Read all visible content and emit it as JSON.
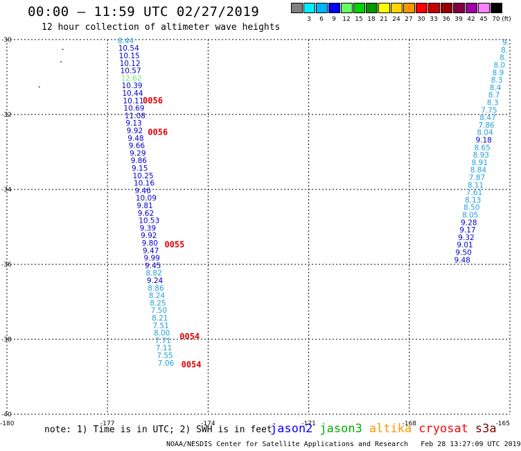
{
  "header": {
    "title": "00:00 – 11:59 UTC 02/27/2019",
    "subtitle": "12 hour collection of altimeter wave heights"
  },
  "legend": {
    "unit_label": "(ft)",
    "bins": [
      {
        "label": "",
        "color": "#808080"
      },
      {
        "label": "3",
        "color": "#00eeff"
      },
      {
        "label": "6",
        "color": "#00b4ff"
      },
      {
        "label": "9",
        "color": "#0000ff"
      },
      {
        "label": "12",
        "color": "#66ff66"
      },
      {
        "label": "15",
        "color": "#00d200"
      },
      {
        "label": "18",
        "color": "#009600"
      },
      {
        "label": "21",
        "color": "#ffff00"
      },
      {
        "label": "24",
        "color": "#ffd200"
      },
      {
        "label": "27",
        "color": "#ff9600"
      },
      {
        "label": "30",
        "color": "#ff0000"
      },
      {
        "label": "33",
        "color": "#c80000"
      },
      {
        "label": "36",
        "color": "#960000"
      },
      {
        "label": "39",
        "color": "#800040"
      },
      {
        "label": "42",
        "color": "#a000a0"
      },
      {
        "label": "45",
        "color": "#ff80ff"
      },
      {
        "label": "70",
        "color": "#000000"
      }
    ]
  },
  "axes": {
    "lat_ticks": [
      "-30",
      "-32",
      "-34",
      "-36",
      "-38",
      "-40"
    ],
    "lon_ticks": [
      "-180",
      "-177",
      "-174",
      "-171",
      "-168",
      "-165"
    ],
    "lat_range": [
      -40,
      -30
    ],
    "lon_range": [
      -180,
      -165
    ]
  },
  "track_west": [
    {
      "lat": -30.1,
      "lon": -176.7,
      "v": "8.44",
      "c": "#1fa0e0"
    },
    {
      "lat": -30.3,
      "lon": -176.68,
      "v": "10.54",
      "c": "#0000cc"
    },
    {
      "lat": -30.5,
      "lon": -176.66,
      "v": "10.15",
      "c": "#0000cc"
    },
    {
      "lat": -30.7,
      "lon": -176.64,
      "v": "10.12",
      "c": "#0000cc"
    },
    {
      "lat": -30.9,
      "lon": -176.62,
      "v": "10.57",
      "c": "#0000cc"
    },
    {
      "lat": -31.1,
      "lon": -176.6,
      "v": "12.62",
      "c": "#66ee66"
    },
    {
      "lat": -31.3,
      "lon": -176.58,
      "v": "10.39",
      "c": "#0000cc"
    },
    {
      "lat": -31.5,
      "lon": -176.56,
      "v": "10.44",
      "c": "#0000cc"
    },
    {
      "lat": -31.7,
      "lon": -176.54,
      "v": "10.11",
      "c": "#0000cc"
    },
    {
      "lat": -31.9,
      "lon": -176.52,
      "v": "10.69",
      "c": "#0000cc"
    },
    {
      "lat": -32.1,
      "lon": -176.49,
      "v": "11.08",
      "c": "#0000cc"
    },
    {
      "lat": -32.3,
      "lon": -176.46,
      "v": "9.13",
      "c": "#0000cc"
    },
    {
      "lat": -32.5,
      "lon": -176.43,
      "v": "9.92",
      "c": "#0000cc"
    },
    {
      "lat": -32.7,
      "lon": -176.4,
      "v": "9.48",
      "c": "#0000cc"
    },
    {
      "lat": -32.9,
      "lon": -176.37,
      "v": "9.66",
      "c": "#0000cc"
    },
    {
      "lat": -33.1,
      "lon": -176.34,
      "v": "9.29",
      "c": "#0000cc"
    },
    {
      "lat": -33.3,
      "lon": -176.31,
      "v": "9.86",
      "c": "#0000cc"
    },
    {
      "lat": -33.5,
      "lon": -176.28,
      "v": "9.15",
      "c": "#0000cc"
    },
    {
      "lat": -33.7,
      "lon": -176.25,
      "v": "10.25",
      "c": "#0000cc"
    },
    {
      "lat": -33.9,
      "lon": -176.22,
      "v": "10.16",
      "c": "#0000cc"
    },
    {
      "lat": -34.1,
      "lon": -176.19,
      "v": "9.46",
      "c": "#0000cc"
    },
    {
      "lat": -34.3,
      "lon": -176.16,
      "v": "10.09",
      "c": "#0000cc"
    },
    {
      "lat": -34.5,
      "lon": -176.13,
      "v": "9.81",
      "c": "#0000cc"
    },
    {
      "lat": -34.7,
      "lon": -176.1,
      "v": "9.62",
      "c": "#0000cc"
    },
    {
      "lat": -34.9,
      "lon": -176.07,
      "v": "10.53",
      "c": "#0000cc"
    },
    {
      "lat": -35.1,
      "lon": -176.04,
      "v": "9.39",
      "c": "#0000cc"
    },
    {
      "lat": -35.3,
      "lon": -176.01,
      "v": "9.92",
      "c": "#0000cc"
    },
    {
      "lat": -35.5,
      "lon": -175.98,
      "v": "9.80",
      "c": "#0000cc"
    },
    {
      "lat": -35.7,
      "lon": -175.95,
      "v": "9.47",
      "c": "#0000cc"
    },
    {
      "lat": -35.9,
      "lon": -175.92,
      "v": "9.99",
      "c": "#0000cc"
    },
    {
      "lat": -36.1,
      "lon": -175.89,
      "v": "9.45",
      "c": "#0000cc"
    },
    {
      "lat": -36.3,
      "lon": -175.86,
      "v": "8.82",
      "c": "#1fa0e0"
    },
    {
      "lat": -36.5,
      "lon": -175.83,
      "v": "9.24",
      "c": "#0000cc"
    },
    {
      "lat": -36.7,
      "lon": -175.8,
      "v": "8.86",
      "c": "#1fa0e0"
    },
    {
      "lat": -36.9,
      "lon": -175.77,
      "v": "8.24",
      "c": "#1fa0e0"
    },
    {
      "lat": -37.1,
      "lon": -175.74,
      "v": "8.25",
      "c": "#1fa0e0"
    },
    {
      "lat": -37.3,
      "lon": -175.71,
      "v": "7.50",
      "c": "#1fa0e0"
    },
    {
      "lat": -37.5,
      "lon": -175.68,
      "v": "8.21",
      "c": "#1fa0e0"
    },
    {
      "lat": -37.7,
      "lon": -175.65,
      "v": "7.51",
      "c": "#1fa0e0"
    },
    {
      "lat": -37.9,
      "lon": -175.62,
      "v": "8.00",
      "c": "#1fa0e0"
    },
    {
      "lat": -38.1,
      "lon": -175.59,
      "v": "7.71",
      "c": "#1fa0e0"
    },
    {
      "lat": -38.3,
      "lon": -175.56,
      "v": "7.11",
      "c": "#1fa0e0"
    },
    {
      "lat": -38.5,
      "lon": -175.53,
      "v": "7.55",
      "c": "#1fa0e0"
    },
    {
      "lat": -38.7,
      "lon": -175.5,
      "v": "7.06",
      "c": "#1fa0e0"
    }
  ],
  "track_east": [
    {
      "lat": -30.15,
      "lon": -165.02,
      "v": "9.",
      "c": "#1fa0e0"
    },
    {
      "lat": -30.35,
      "lon": -165.06,
      "v": "8.",
      "c": "#1fa0e0"
    },
    {
      "lat": -30.55,
      "lon": -165.1,
      "v": "8.",
      "c": "#1fa0e0"
    },
    {
      "lat": -30.75,
      "lon": -165.14,
      "v": "8.0",
      "c": "#1fa0e0"
    },
    {
      "lat": -30.95,
      "lon": -165.18,
      "v": "8.9",
      "c": "#1fa0e0"
    },
    {
      "lat": -31.15,
      "lon": -165.22,
      "v": "8.3",
      "c": "#1fa0e0"
    },
    {
      "lat": -31.35,
      "lon": -165.26,
      "v": "8.4",
      "c": "#1fa0e0"
    },
    {
      "lat": -31.55,
      "lon": -165.3,
      "v": "8.7",
      "c": "#1fa0e0"
    },
    {
      "lat": -31.75,
      "lon": -165.34,
      "v": "8.3",
      "c": "#1fa0e0"
    },
    {
      "lat": -31.95,
      "lon": -165.38,
      "v": "7.75",
      "c": "#1fa0e0"
    },
    {
      "lat": -32.15,
      "lon": -165.42,
      "v": "8.47",
      "c": "#1fa0e0"
    },
    {
      "lat": -32.35,
      "lon": -165.46,
      "v": "7.86",
      "c": "#1fa0e0"
    },
    {
      "lat": -32.55,
      "lon": -165.5,
      "v": "8.04",
      "c": "#1fa0e0"
    },
    {
      "lat": -32.75,
      "lon": -165.54,
      "v": "9.18",
      "c": "#0000cc"
    },
    {
      "lat": -32.95,
      "lon": -165.58,
      "v": "8.65",
      "c": "#1fa0e0"
    },
    {
      "lat": -33.15,
      "lon": -165.62,
      "v": "8.93",
      "c": "#1fa0e0"
    },
    {
      "lat": -33.35,
      "lon": -165.66,
      "v": "8.91",
      "c": "#1fa0e0"
    },
    {
      "lat": -33.55,
      "lon": -165.7,
      "v": "8.84",
      "c": "#1fa0e0"
    },
    {
      "lat": -33.75,
      "lon": -165.74,
      "v": "7.87",
      "c": "#1fa0e0"
    },
    {
      "lat": -33.95,
      "lon": -165.78,
      "v": "8.11",
      "c": "#1fa0e0"
    },
    {
      "lat": -34.15,
      "lon": -165.82,
      "v": "7.61",
      "c": "#1fa0e0"
    },
    {
      "lat": -34.35,
      "lon": -165.86,
      "v": "8.13",
      "c": "#1fa0e0"
    },
    {
      "lat": -34.55,
      "lon": -165.9,
      "v": "8.50",
      "c": "#1fa0e0"
    },
    {
      "lat": -34.75,
      "lon": -165.94,
      "v": "8.05",
      "c": "#1fa0e0"
    },
    {
      "lat": -34.95,
      "lon": -165.98,
      "v": "9.28",
      "c": "#0000cc"
    },
    {
      "lat": -35.15,
      "lon": -166.02,
      "v": "9.17",
      "c": "#0000cc"
    },
    {
      "lat": -35.35,
      "lon": -166.06,
      "v": "9.32",
      "c": "#0000cc"
    },
    {
      "lat": -35.55,
      "lon": -166.1,
      "v": "9.01",
      "c": "#0000cc"
    },
    {
      "lat": -35.75,
      "lon": -166.14,
      "v": "9.50",
      "c": "#0000cc"
    },
    {
      "lat": -35.95,
      "lon": -166.18,
      "v": "9.48",
      "c": "#0000cc"
    }
  ],
  "time_labels": [
    {
      "lat": -31.7,
      "lon": -175.95,
      "t": "0056"
    },
    {
      "lat": -32.55,
      "lon": -175.8,
      "t": "0056"
    },
    {
      "lat": -35.55,
      "lon": -175.3,
      "t": "0055"
    },
    {
      "lat": -38.0,
      "lon": -174.85,
      "t": "0054"
    },
    {
      "lat": -38.75,
      "lon": -174.8,
      "t": "0054"
    }
  ],
  "land_dots": [
    {
      "lat": -30.25,
      "lon": -178.35
    },
    {
      "lat": -30.58,
      "lon": -178.4
    },
    {
      "lat": -31.25,
      "lon": -179.05
    }
  ],
  "footer": {
    "note": "note: 1) Time is in UTC; 2) SWH is in feet",
    "satellites": [
      {
        "name": "jason2",
        "color": "#0000ff"
      },
      {
        "name": "jason3",
        "color": "#00b000"
      },
      {
        "name": "altika",
        "color": "#ff9600"
      },
      {
        "name": "cryosat",
        "color": "#ff0000"
      },
      {
        "name": "s3a",
        "color": "#800000"
      }
    ],
    "credit": "NOAA/NESDIS Center for Satellite Applications and Research",
    "timestamp": "Feb 28 13:27:09 UTC 2019"
  }
}
